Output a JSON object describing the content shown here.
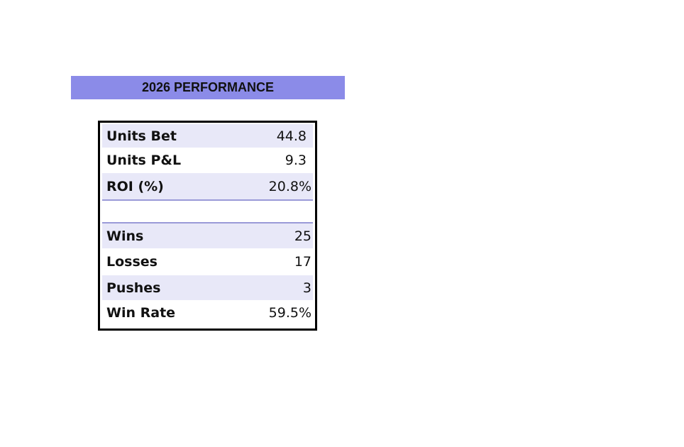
{
  "title": "2026 PERFORMANCE",
  "rows": [
    {
      "label": "Units Bet",
      "value": "44.8"
    },
    {
      "label": "Units P&L",
      "value": "9.3"
    },
    {
      "label": "ROI (%)",
      "value": "20.8%"
    },
    {
      "label": "Wins",
      "value": "25"
    },
    {
      "label": "Losses",
      "value": "17"
    },
    {
      "label": "Pushes",
      "value": "3"
    },
    {
      "label": "Win Rate",
      "value": "59.5%"
    }
  ],
  "colors": {
    "banner": "#8b8be8",
    "row_shade": "#e8e8f8",
    "divider": "#9a9ad8"
  }
}
